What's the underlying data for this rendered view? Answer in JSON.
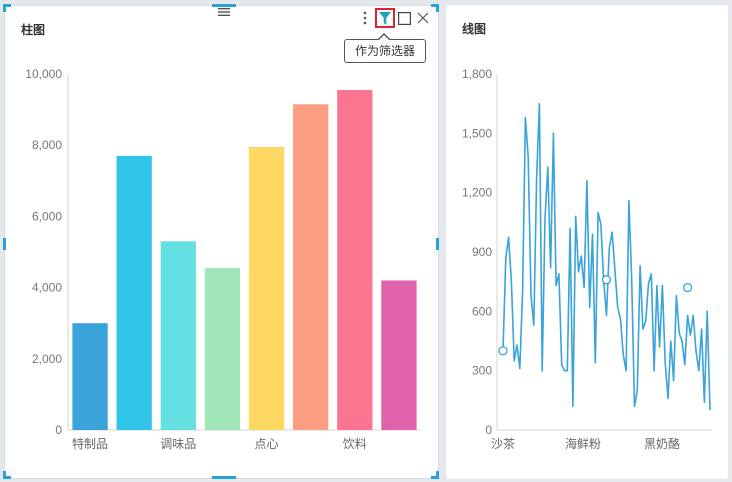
{
  "left_panel": {
    "title": "柱图",
    "tooltip": "作为筛选器",
    "toolbar": {
      "drag_icon": "hamburger-icon",
      "more_icon": "vertical-dots-icon",
      "filter_icon": "funnel-icon",
      "maximize_icon": "square-icon",
      "close_icon": "close-icon",
      "filter_color": "#2aa0b8",
      "filter_border_color": "#e0242f"
    }
  },
  "right_panel": {
    "title": "线图"
  },
  "chart_data": [
    {
      "type": "bar",
      "title": "柱图",
      "categories": [
        "特制品",
        "",
        "调味品",
        "",
        "点心",
        "",
        "饮料",
        ""
      ],
      "values": [
        3000,
        7700,
        5300,
        4550,
        7950,
        9150,
        9550,
        4200
      ],
      "colors": [
        "#3aa3da",
        "#30c4e8",
        "#64dfe2",
        "#a0e6b8",
        "#fed862",
        "#fe9e80",
        "#fc7590",
        "#e062aa"
      ],
      "ylim": [
        0,
        10000
      ],
      "yticks": [
        "0",
        "2,000",
        "4,000",
        "6,000",
        "8,000",
        "10,000"
      ],
      "grid": false
    },
    {
      "type": "line",
      "title": "线图",
      "x_tick_labels": [
        "沙茶",
        "海鲜粉",
        "黑奶酪"
      ],
      "ylim": [
        0,
        1800
      ],
      "yticks": [
        "0",
        "300",
        "600",
        "900",
        "1,200",
        "1,500",
        "1,800"
      ],
      "color": "#3aa3da",
      "grid": false,
      "values": [
        400,
        870,
        975,
        750,
        350,
        430,
        310,
        700,
        1580,
        1380,
        680,
        530,
        1270,
        1650,
        300,
        1070,
        1330,
        820,
        1500,
        730,
        790,
        330,
        300,
        300,
        1020,
        120,
        1080,
        800,
        880,
        720,
        1260,
        620,
        990,
        340,
        1100,
        1040,
        750,
        580,
        920,
        1000,
        810,
        620,
        560,
        380,
        300,
        1160,
        760,
        120,
        200,
        830,
        510,
        550,
        740,
        790,
        300,
        730,
        420,
        730,
        340,
        160,
        450,
        250,
        680,
        490,
        450,
        330,
        580,
        480,
        580,
        400,
        300,
        510,
        140,
        600,
        100
      ],
      "markers": [
        {
          "label": "沙茶",
          "value": 400
        },
        {
          "label": "海鲜粉",
          "value": 760
        },
        {
          "label": "黑奶酪",
          "value": 720
        }
      ]
    }
  ]
}
